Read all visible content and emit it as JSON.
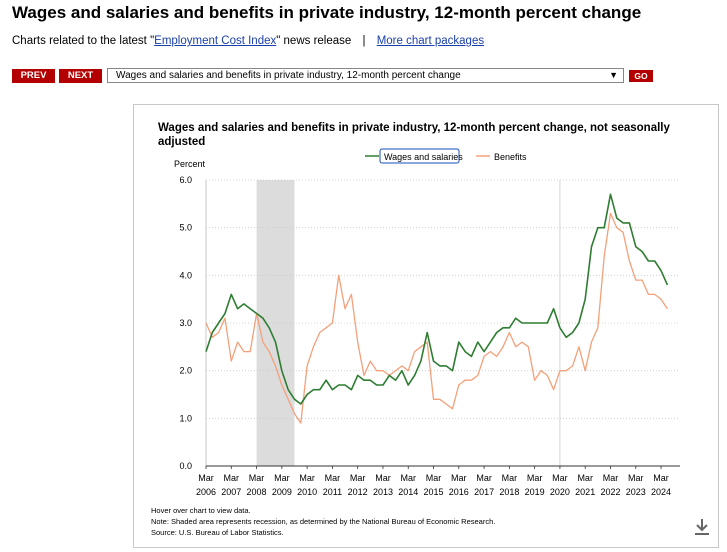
{
  "header": {
    "title": "Wages and salaries and benefits in private industry, 12-month percent change",
    "related_prefix": "Charts related to the latest \"",
    "related_link": "Employment Cost Index",
    "related_suffix": "\" news release",
    "separator": "|",
    "more_link": "More chart packages"
  },
  "controls": {
    "prev_label": "PREV",
    "next_label": "NEXT",
    "select_value": "Wages and salaries and benefits in private industry, 12-month percent change",
    "go_label": "GO"
  },
  "colors": {
    "brand_red": "#b30000",
    "wages": "#2e7d32",
    "benefits": "#f4a07a",
    "recession": "#dcdcdc"
  },
  "icons": {
    "download": "download-icon"
  },
  "chart_data": {
    "type": "line",
    "title_line1": "Wages and salaries and benefits in private industry, 12-month percent change, not seasonally",
    "title_line2": "adjusted",
    "ylabel": "Percent",
    "ylim": [
      0,
      6
    ],
    "yticks": [
      "0.0",
      "1.0",
      "2.0",
      "3.0",
      "4.0",
      "5.0",
      "6.0"
    ],
    "xlim": [
      2006.0,
      2024.75
    ],
    "xticks": [
      {
        "month": "Mar",
        "year": "2006"
      },
      {
        "month": "Mar",
        "year": "2007"
      },
      {
        "month": "Mar",
        "year": "2008"
      },
      {
        "month": "Mar",
        "year": "2009"
      },
      {
        "month": "Mar",
        "year": "2010"
      },
      {
        "month": "Mar",
        "year": "2011"
      },
      {
        "month": "Mar",
        "year": "2012"
      },
      {
        "month": "Mar",
        "year": "2013"
      },
      {
        "month": "Mar",
        "year": "2014"
      },
      {
        "month": "Mar",
        "year": "2015"
      },
      {
        "month": "Mar",
        "year": "2016"
      },
      {
        "month": "Mar",
        "year": "2017"
      },
      {
        "month": "Mar",
        "year": "2018"
      },
      {
        "month": "Mar",
        "year": "2019"
      },
      {
        "month": "Mar",
        "year": "2020"
      },
      {
        "month": "Mar",
        "year": "2021"
      },
      {
        "month": "Mar",
        "year": "2022"
      },
      {
        "month": "Mar",
        "year": "2023"
      },
      {
        "month": "Mar",
        "year": "2024"
      }
    ],
    "recession": {
      "start": 2008.0,
      "end": 2009.5
    },
    "grid": true,
    "legend_position": "top-center",
    "series": [
      {
        "name": "Wages and salaries",
        "start": 2006.0,
        "step": 0.25,
        "values": [
          2.4,
          2.8,
          3.0,
          3.2,
          3.6,
          3.3,
          3.4,
          3.3,
          3.2,
          3.1,
          2.9,
          2.6,
          2.0,
          1.6,
          1.4,
          1.3,
          1.5,
          1.6,
          1.6,
          1.8,
          1.6,
          1.7,
          1.7,
          1.6,
          1.9,
          1.8,
          1.8,
          1.7,
          1.7,
          1.9,
          1.8,
          2.0,
          1.7,
          1.9,
          2.2,
          2.8,
          2.2,
          2.1,
          2.1,
          2.0,
          2.6,
          2.4,
          2.3,
          2.6,
          2.4,
          2.6,
          2.8,
          2.9,
          2.9,
          3.1,
          3.0,
          3.0,
          3.0,
          3.0,
          3.0,
          3.3,
          2.9,
          2.7,
          2.8,
          3.0,
          3.5,
          4.6,
          5.0,
          5.0,
          5.7,
          5.2,
          5.1,
          5.1,
          4.6,
          4.5,
          4.3,
          4.3,
          4.1,
          3.8
        ]
      },
      {
        "name": "Benefits",
        "start": 2006.0,
        "step": 0.25,
        "values": [
          3.0,
          2.7,
          2.8,
          3.1,
          2.2,
          2.6,
          2.4,
          2.4,
          3.2,
          2.6,
          2.4,
          2.1,
          1.7,
          1.4,
          1.1,
          0.9,
          2.1,
          2.5,
          2.8,
          2.9,
          3.0,
          4.0,
          3.3,
          3.6,
          2.6,
          1.9,
          2.2,
          2.0,
          2.0,
          1.9,
          2.0,
          2.1,
          2.0,
          2.4,
          2.5,
          2.6,
          1.4,
          1.4,
          1.3,
          1.2,
          1.7,
          1.8,
          1.8,
          1.9,
          2.3,
          2.4,
          2.3,
          2.5,
          2.8,
          2.5,
          2.6,
          2.5,
          1.8,
          2.0,
          1.9,
          1.6,
          2.0,
          2.0,
          2.1,
          2.5,
          2.0,
          2.6,
          2.9,
          4.4,
          5.3,
          5.0,
          4.9,
          4.3,
          3.9,
          3.9,
          3.6,
          3.6,
          3.5,
          3.3
        ]
      }
    ],
    "notes": [
      "Hover over chart to view data.",
      "Note: Shaded area represents recession, as determined by the National Bureau of Economic Research.",
      "Source: U.S. Bureau of Labor Statistics."
    ]
  }
}
